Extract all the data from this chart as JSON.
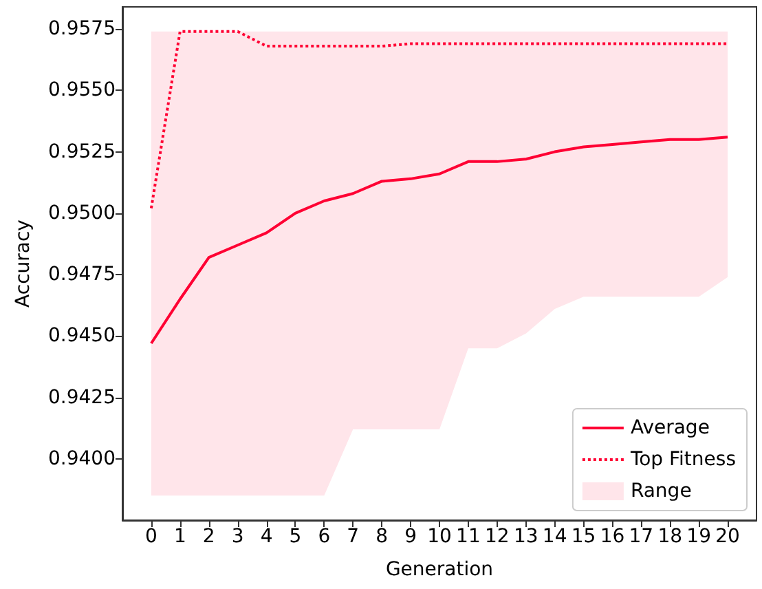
{
  "chart_data": {
    "type": "line",
    "xlabel": "Generation",
    "ylabel": "Accuracy",
    "x": [
      0,
      1,
      2,
      3,
      4,
      5,
      6,
      7,
      8,
      9,
      10,
      11,
      12,
      13,
      14,
      15,
      16,
      17,
      18,
      19,
      20
    ],
    "series": [
      {
        "name": "Average",
        "color": "#ff0033",
        "line_style": "solid",
        "values": [
          0.9447,
          0.9465,
          0.9482,
          0.9487,
          0.9492,
          0.95,
          0.9505,
          0.9508,
          0.9513,
          0.9514,
          0.9516,
          0.9521,
          0.9521,
          0.9522,
          0.9525,
          0.9527,
          0.9528,
          0.9529,
          0.953,
          0.953,
          0.9531
        ]
      },
      {
        "name": "Top Fitness",
        "color": "#ff0033",
        "line_style": "dotted",
        "values": [
          0.9502,
          0.9574,
          0.9574,
          0.9574,
          0.9568,
          0.9568,
          0.9568,
          0.9568,
          0.9568,
          0.9569,
          0.9569,
          0.9569,
          0.9569,
          0.9569,
          0.9569,
          0.9569,
          0.9569,
          0.9569,
          0.9569,
          0.9569,
          0.9569
        ]
      },
      {
        "name": "Range",
        "type": "area",
        "color": "#ffe5ea",
        "values": [
          null,
          null,
          null,
          null,
          null,
          null,
          null,
          null,
          null,
          null,
          null,
          null,
          null,
          null,
          null,
          null,
          null,
          null,
          null,
          null,
          null
        ],
        "lower": [
          0.9385,
          0.9385,
          0.9385,
          0.9385,
          0.9385,
          0.9385,
          0.9385,
          0.9412,
          0.9412,
          0.9412,
          0.9412,
          0.9445,
          0.9445,
          0.9451,
          0.9461,
          0.9466,
          0.9466,
          0.9466,
          0.9466,
          0.9466,
          0.9474
        ],
        "upper": [
          0.9574,
          0.9574,
          0.9574,
          0.9574,
          0.9574,
          0.9574,
          0.9574,
          0.9574,
          0.9574,
          0.9574,
          0.9574,
          0.9574,
          0.9574,
          0.9574,
          0.9574,
          0.9574,
          0.9574,
          0.9574,
          0.9574,
          0.9574,
          0.9574
        ]
      }
    ],
    "xlim": [
      -1,
      21
    ],
    "xticks": [
      0,
      1,
      2,
      3,
      4,
      5,
      6,
      7,
      8,
      9,
      10,
      11,
      12,
      13,
      14,
      15,
      16,
      17,
      18,
      19,
      20
    ],
    "ylim": [
      0.9375,
      0.9584
    ],
    "yticks": [
      {
        "value": 0.94,
        "label": "0.9400"
      },
      0.9425,
      {
        "value": 0.945,
        "label": "0.9450"
      },
      0.9475,
      {
        "value": 0.95,
        "label": "0.9500"
      },
      0.9525,
      {
        "value": 0.955,
        "label": "0.9550"
      },
      0.9575
    ],
    "grid": false,
    "legend": "bottom right",
    "marker": "none"
  }
}
